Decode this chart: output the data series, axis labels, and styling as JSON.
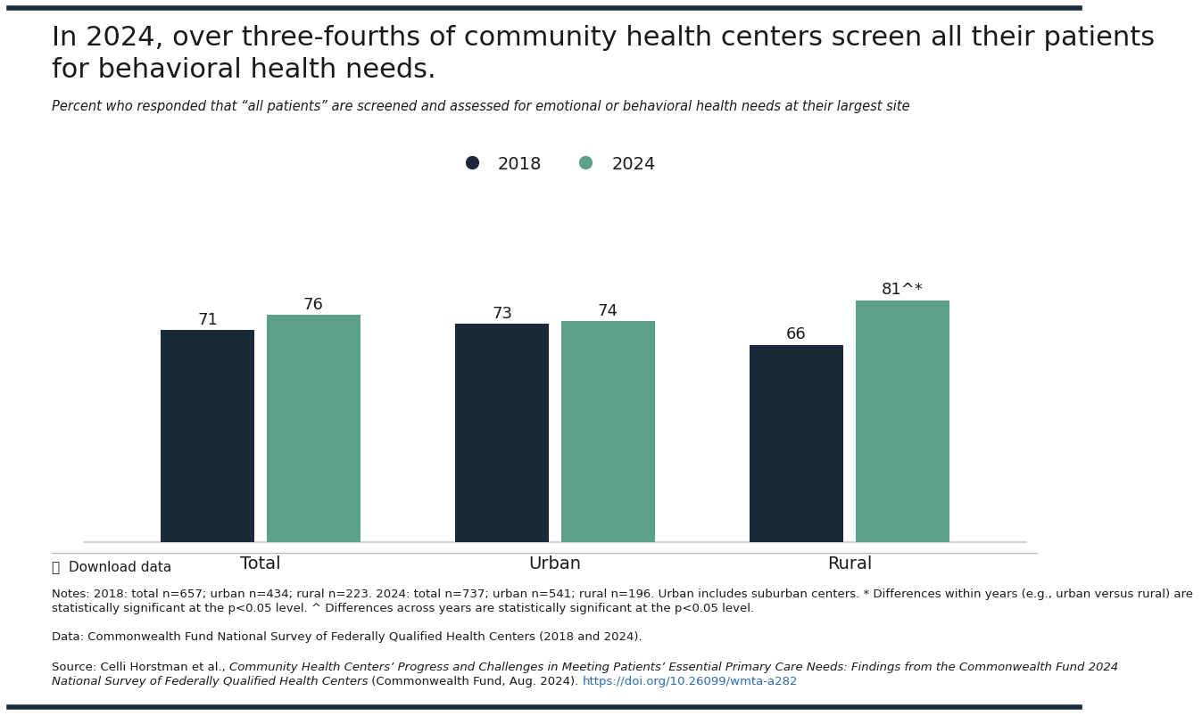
{
  "title_line1": "In 2024, over three-fourths of community health centers screen all their patients",
  "title_line2": "for behavioral health needs.",
  "subtitle": "Percent who responded that “all patients” are screened and assessed for emotional or behavioral health needs at their largest site",
  "categories": [
    "Total",
    "Urban",
    "Rural"
  ],
  "values_2018": [
    71,
    73,
    66
  ],
  "values_2024": [
    76,
    74,
    81
  ],
  "labels_2024": [
    "76",
    "74",
    "81^*"
  ],
  "labels_2018": [
    "71",
    "73",
    "66"
  ],
  "color_2018": "#1b2a3b",
  "color_2024": "#5ba08a",
  "legend_labels": [
    "2018",
    "2024"
  ],
  "bar_width": 0.32,
  "ylim": [
    0,
    95
  ],
  "download_text": "⤓  Download data",
  "notes_line1": "Notes: 2018: total n=657; urban n=434; rural n=223. 2024: total n=737; urban n=541; rural n=196. Urban includes suburban centers. * Differences within years (e.g., urban versus rural) are",
  "notes_line2": "statistically significant at the p<0.05 level. ^ Differences across years are statistically significant at the p<0.05 level.",
  "data_text": "Data: Commonwealth Fund National Survey of Federally Qualified Health Centers (2018 and 2024).",
  "source_pre": "Source: Celli Horstman et al., ",
  "source_italic": "Community Health Centers’ Progress and Challenges in Meeting Patients’ Essential Primary Care Needs: Findings from the Commonwealth Fund 2024",
  "source_italic2": "National Survey of Federally Qualified Health Centers",
  "source_end": " (Commonwealth Fund, Aug. 2024). ",
  "source_url": "https://doi.org/10.26099/wmta-a282",
  "background_color": "#ffffff",
  "text_color": "#1a1a1a",
  "url_color": "#2b6cb0",
  "border_color": "#1b2a3b"
}
